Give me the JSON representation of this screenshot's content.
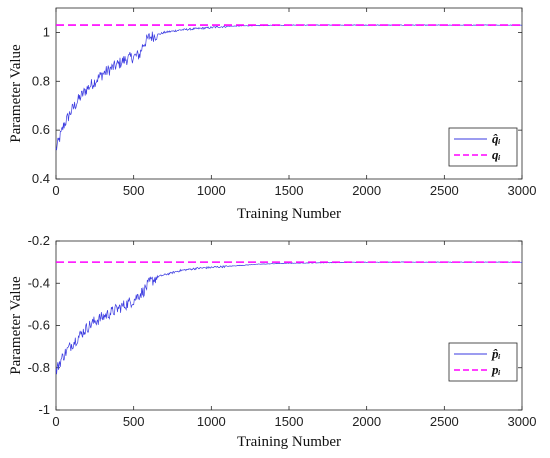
{
  "chart_data": [
    {
      "type": "line",
      "xlabel": "Training Number",
      "ylabel": "Parameter Value",
      "xlim": [
        0,
        3000
      ],
      "ylim": [
        0.4,
        1.1
      ],
      "xticks": [
        0,
        500,
        1000,
        1500,
        2000,
        2500,
        3000
      ],
      "yticks": [
        0.4,
        0.6,
        0.8,
        1.0
      ],
      "ytick_labels": [
        "0.4",
        "0.6",
        "0.8",
        "1"
      ],
      "legend_position": "lower-right",
      "series": [
        {
          "name": "q̂ᵢ",
          "style": "solid",
          "color": "#3a3ae0",
          "x": [
            0,
            20,
            50,
            100,
            150,
            200,
            250,
            300,
            350,
            400,
            450,
            500,
            540,
            560,
            600,
            650,
            700,
            800,
            900,
            1000,
            1100,
            1200,
            1300,
            1500,
            2000,
            2500,
            3000
          ],
          "y": [
            0.52,
            0.56,
            0.62,
            0.68,
            0.73,
            0.77,
            0.8,
            0.83,
            0.85,
            0.87,
            0.89,
            0.9,
            0.91,
            0.95,
            0.98,
            0.99,
            1.0,
            1.01,
            1.015,
            1.02,
            1.025,
            1.027,
            1.028,
            1.03,
            1.03,
            1.03,
            1.03
          ]
        },
        {
          "name": "qᵢ",
          "style": "dashed",
          "color": "#ff00ff",
          "x": [
            0,
            3000
          ],
          "y": [
            1.03,
            1.03
          ]
        }
      ]
    },
    {
      "type": "line",
      "xlabel": "Training Number",
      "ylabel": "Parameter Value",
      "xlim": [
        0,
        3000
      ],
      "ylim": [
        -1,
        -0.2
      ],
      "xticks": [
        0,
        500,
        1000,
        1500,
        2000,
        2500,
        3000
      ],
      "yticks": [
        -1,
        -0.8,
        -0.6,
        -0.4,
        -0.2
      ],
      "ytick_labels": [
        "-1",
        "-0.8",
        "-0.6",
        "-0.4",
        "-0.2"
      ],
      "legend_position": "lower-right",
      "series": [
        {
          "name": "p̂ᵢ",
          "style": "solid",
          "color": "#3a3ae0",
          "x": [
            0,
            20,
            50,
            100,
            150,
            200,
            250,
            300,
            350,
            400,
            450,
            500,
            540,
            560,
            600,
            650,
            700,
            800,
            900,
            1000,
            1100,
            1200,
            1300,
            1500,
            2000,
            2500,
            3000
          ],
          "y": [
            -0.82,
            -0.78,
            -0.74,
            -0.69,
            -0.65,
            -0.61,
            -0.58,
            -0.56,
            -0.54,
            -0.52,
            -0.5,
            -0.48,
            -0.45,
            -0.44,
            -0.4,
            -0.37,
            -0.36,
            -0.34,
            -0.33,
            -0.325,
            -0.32,
            -0.315,
            -0.31,
            -0.305,
            -0.3,
            -0.3,
            -0.3
          ]
        },
        {
          "name": "pᵢ",
          "style": "dashed",
          "color": "#ff00ff",
          "x": [
            0,
            3000
          ],
          "y": [
            -0.3,
            -0.3
          ]
        }
      ]
    }
  ]
}
